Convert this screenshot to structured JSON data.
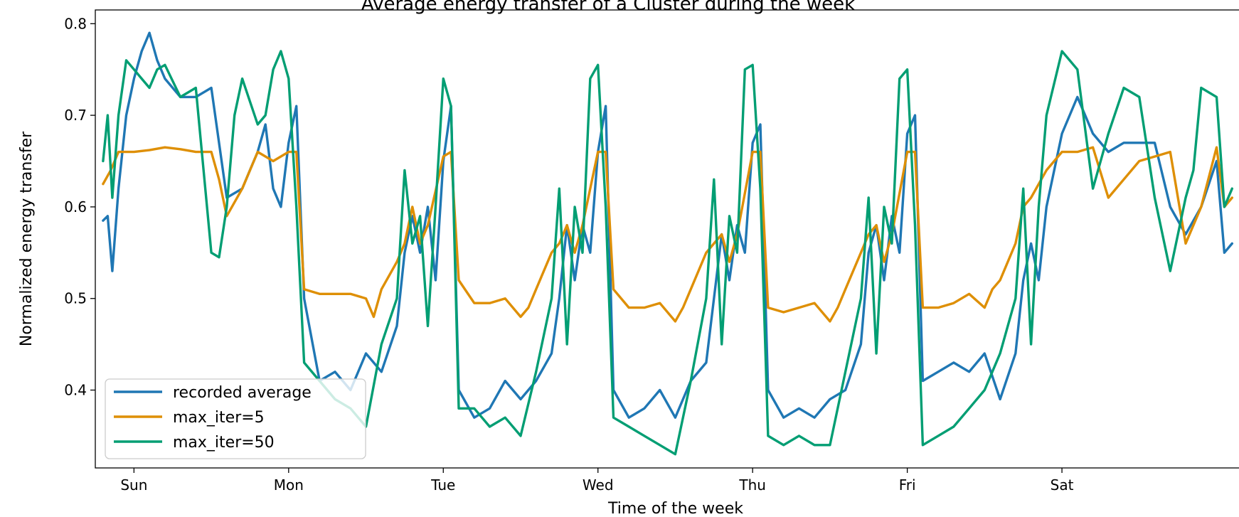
{
  "chart_data": {
    "type": "line",
    "title": "Average energy transfer of a Cluster during the week",
    "xlabel": "Time of the week",
    "ylabel": "Normalized energy transfer",
    "categories": [
      "Sun",
      "Mon",
      "Tue",
      "Wed",
      "Thu",
      "Fri",
      "Sat"
    ],
    "xlim": [
      -0.25,
      7.2
    ],
    "ylim": [
      0.315,
      0.815
    ],
    "yticks": [
      0.4,
      0.5,
      0.6,
      0.7,
      0.8
    ],
    "ytick_labels": [
      "0.4",
      "0.5",
      "0.6",
      "0.7",
      "0.8"
    ],
    "grid": false,
    "legend_position": "lower left",
    "series": [
      {
        "name": "recorded average",
        "color": "#1f77b4",
        "x": [
          -0.2,
          -0.17,
          -0.14,
          -0.1,
          -0.05,
          0,
          0.05,
          0.1,
          0.15,
          0.2,
          0.3,
          0.4,
          0.5,
          0.6,
          0.7,
          0.75,
          0.8,
          0.85,
          0.9,
          0.95,
          1.0,
          1.05,
          1.1,
          1.2,
          1.3,
          1.4,
          1.5,
          1.6,
          1.7,
          1.75,
          1.8,
          1.85,
          1.9,
          1.95,
          2.0,
          2.05,
          2.1,
          2.2,
          2.3,
          2.4,
          2.5,
          2.6,
          2.7,
          2.75,
          2.8,
          2.85,
          2.9,
          2.95,
          3.0,
          3.05,
          3.1,
          3.2,
          3.3,
          3.4,
          3.5,
          3.6,
          3.7,
          3.75,
          3.8,
          3.85,
          3.9,
          3.95,
          4.0,
          4.05,
          4.1,
          4.2,
          4.3,
          4.4,
          4.5,
          4.6,
          4.7,
          4.75,
          4.8,
          4.85,
          4.9,
          4.95,
          5.0,
          5.05,
          5.1,
          5.2,
          5.3,
          5.4,
          5.5,
          5.6,
          5.7,
          5.75,
          5.8,
          5.85,
          5.9,
          6.0,
          6.1,
          6.2,
          6.3,
          6.4,
          6.5,
          6.6,
          6.7,
          6.8,
          6.9,
          7.0,
          7.05,
          7.1
        ],
        "values": [
          0.585,
          0.59,
          0.53,
          0.62,
          0.7,
          0.74,
          0.77,
          0.79,
          0.76,
          0.74,
          0.72,
          0.72,
          0.73,
          0.61,
          0.62,
          0.64,
          0.66,
          0.69,
          0.62,
          0.6,
          0.67,
          0.71,
          0.5,
          0.41,
          0.42,
          0.4,
          0.44,
          0.42,
          0.47,
          0.55,
          0.59,
          0.55,
          0.6,
          0.52,
          0.65,
          0.71,
          0.4,
          0.37,
          0.38,
          0.41,
          0.39,
          0.41,
          0.44,
          0.5,
          0.58,
          0.52,
          0.58,
          0.55,
          0.66,
          0.71,
          0.4,
          0.37,
          0.38,
          0.4,
          0.37,
          0.41,
          0.43,
          0.5,
          0.57,
          0.52,
          0.58,
          0.55,
          0.67,
          0.69,
          0.4,
          0.37,
          0.38,
          0.37,
          0.39,
          0.4,
          0.45,
          0.55,
          0.58,
          0.52,
          0.59,
          0.55,
          0.68,
          0.7,
          0.41,
          0.42,
          0.43,
          0.42,
          0.44,
          0.39,
          0.44,
          0.52,
          0.56,
          0.52,
          0.6,
          0.68,
          0.72,
          0.68,
          0.66,
          0.67,
          0.67,
          0.67,
          0.6,
          0.57,
          0.6,
          0.65,
          0.55,
          0.56
        ]
      },
      {
        "name": "max_iter=5",
        "color": "#de8f05",
        "x": [
          -0.2,
          -0.15,
          -0.1,
          -0.05,
          0,
          0.1,
          0.2,
          0.3,
          0.4,
          0.5,
          0.55,
          0.6,
          0.7,
          0.8,
          0.9,
          1.0,
          1.05,
          1.1,
          1.2,
          1.3,
          1.4,
          1.5,
          1.55,
          1.6,
          1.7,
          1.75,
          1.8,
          1.85,
          1.9,
          2.0,
          2.05,
          2.1,
          2.2,
          2.3,
          2.4,
          2.5,
          2.55,
          2.6,
          2.7,
          2.75,
          2.8,
          2.85,
          2.9,
          3.0,
          3.05,
          3.1,
          3.2,
          3.3,
          3.4,
          3.5,
          3.55,
          3.6,
          3.7,
          3.75,
          3.8,
          3.85,
          3.9,
          4.0,
          4.05,
          4.1,
          4.2,
          4.3,
          4.4,
          4.5,
          4.55,
          4.6,
          4.7,
          4.75,
          4.8,
          4.85,
          4.9,
          5.0,
          5.05,
          5.1,
          5.2,
          5.3,
          5.4,
          5.5,
          5.55,
          5.6,
          5.7,
          5.75,
          5.8,
          5.9,
          6.0,
          6.1,
          6.2,
          6.3,
          6.4,
          6.5,
          6.6,
          6.7,
          6.8,
          6.9,
          7.0,
          7.05,
          7.1
        ],
        "values": [
          0.625,
          0.64,
          0.66,
          0.66,
          0.66,
          0.662,
          0.665,
          0.663,
          0.66,
          0.66,
          0.63,
          0.59,
          0.62,
          0.66,
          0.65,
          0.66,
          0.66,
          0.51,
          0.505,
          0.505,
          0.505,
          0.5,
          0.48,
          0.51,
          0.54,
          0.56,
          0.6,
          0.56,
          0.58,
          0.655,
          0.66,
          0.52,
          0.495,
          0.495,
          0.5,
          0.48,
          0.49,
          0.51,
          0.55,
          0.56,
          0.58,
          0.55,
          0.58,
          0.66,
          0.66,
          0.51,
          0.49,
          0.49,
          0.495,
          0.475,
          0.49,
          0.51,
          0.55,
          0.56,
          0.57,
          0.54,
          0.57,
          0.66,
          0.66,
          0.49,
          0.485,
          0.49,
          0.495,
          0.475,
          0.49,
          0.51,
          0.55,
          0.57,
          0.58,
          0.54,
          0.57,
          0.66,
          0.66,
          0.49,
          0.49,
          0.495,
          0.505,
          0.49,
          0.51,
          0.52,
          0.56,
          0.6,
          0.61,
          0.64,
          0.66,
          0.66,
          0.665,
          0.61,
          0.63,
          0.65,
          0.655,
          0.66,
          0.56,
          0.6,
          0.665,
          0.6,
          0.61
        ]
      },
      {
        "name": "max_iter=50",
        "color": "#029e73",
        "x": [
          -0.2,
          -0.17,
          -0.14,
          -0.1,
          -0.05,
          0,
          0.05,
          0.1,
          0.15,
          0.2,
          0.3,
          0.4,
          0.5,
          0.55,
          0.6,
          0.65,
          0.7,
          0.8,
          0.85,
          0.9,
          0.95,
          1.0,
          1.05,
          1.1,
          1.2,
          1.3,
          1.4,
          1.5,
          1.6,
          1.7,
          1.75,
          1.8,
          1.85,
          1.9,
          1.95,
          2.0,
          2.05,
          2.1,
          2.2,
          2.3,
          2.4,
          2.5,
          2.6,
          2.7,
          2.75,
          2.8,
          2.85,
          2.9,
          2.95,
          3.0,
          3.05,
          3.1,
          3.2,
          3.3,
          3.4,
          3.5,
          3.6,
          3.7,
          3.75,
          3.8,
          3.85,
          3.9,
          3.95,
          4.0,
          4.05,
          4.1,
          4.2,
          4.3,
          4.4,
          4.5,
          4.6,
          4.7,
          4.75,
          4.8,
          4.85,
          4.9,
          4.95,
          5.0,
          5.05,
          5.1,
          5.2,
          5.3,
          5.4,
          5.5,
          5.6,
          5.7,
          5.75,
          5.8,
          5.85,
          5.9,
          6.0,
          6.1,
          6.2,
          6.3,
          6.4,
          6.5,
          6.6,
          6.7,
          6.8,
          6.85,
          6.9,
          7.0,
          7.05,
          7.1
        ],
        "values": [
          0.65,
          0.7,
          0.61,
          0.7,
          0.76,
          0.75,
          0.74,
          0.73,
          0.75,
          0.755,
          0.72,
          0.73,
          0.55,
          0.545,
          0.6,
          0.7,
          0.74,
          0.69,
          0.7,
          0.75,
          0.77,
          0.74,
          0.6,
          0.43,
          0.41,
          0.39,
          0.38,
          0.36,
          0.45,
          0.5,
          0.64,
          0.56,
          0.59,
          0.47,
          0.6,
          0.74,
          0.71,
          0.38,
          0.38,
          0.36,
          0.37,
          0.35,
          0.42,
          0.5,
          0.62,
          0.45,
          0.6,
          0.55,
          0.74,
          0.755,
          0.6,
          0.37,
          0.36,
          0.35,
          0.34,
          0.33,
          0.41,
          0.5,
          0.63,
          0.45,
          0.59,
          0.55,
          0.75,
          0.755,
          0.62,
          0.35,
          0.34,
          0.35,
          0.34,
          0.34,
          0.42,
          0.5,
          0.61,
          0.44,
          0.6,
          0.56,
          0.74,
          0.75,
          0.58,
          0.34,
          0.35,
          0.36,
          0.38,
          0.4,
          0.44,
          0.5,
          0.62,
          0.45,
          0.6,
          0.7,
          0.77,
          0.75,
          0.62,
          0.68,
          0.73,
          0.72,
          0.61,
          0.53,
          0.61,
          0.64,
          0.73,
          0.72,
          0.6,
          0.62
        ]
      }
    ]
  }
}
